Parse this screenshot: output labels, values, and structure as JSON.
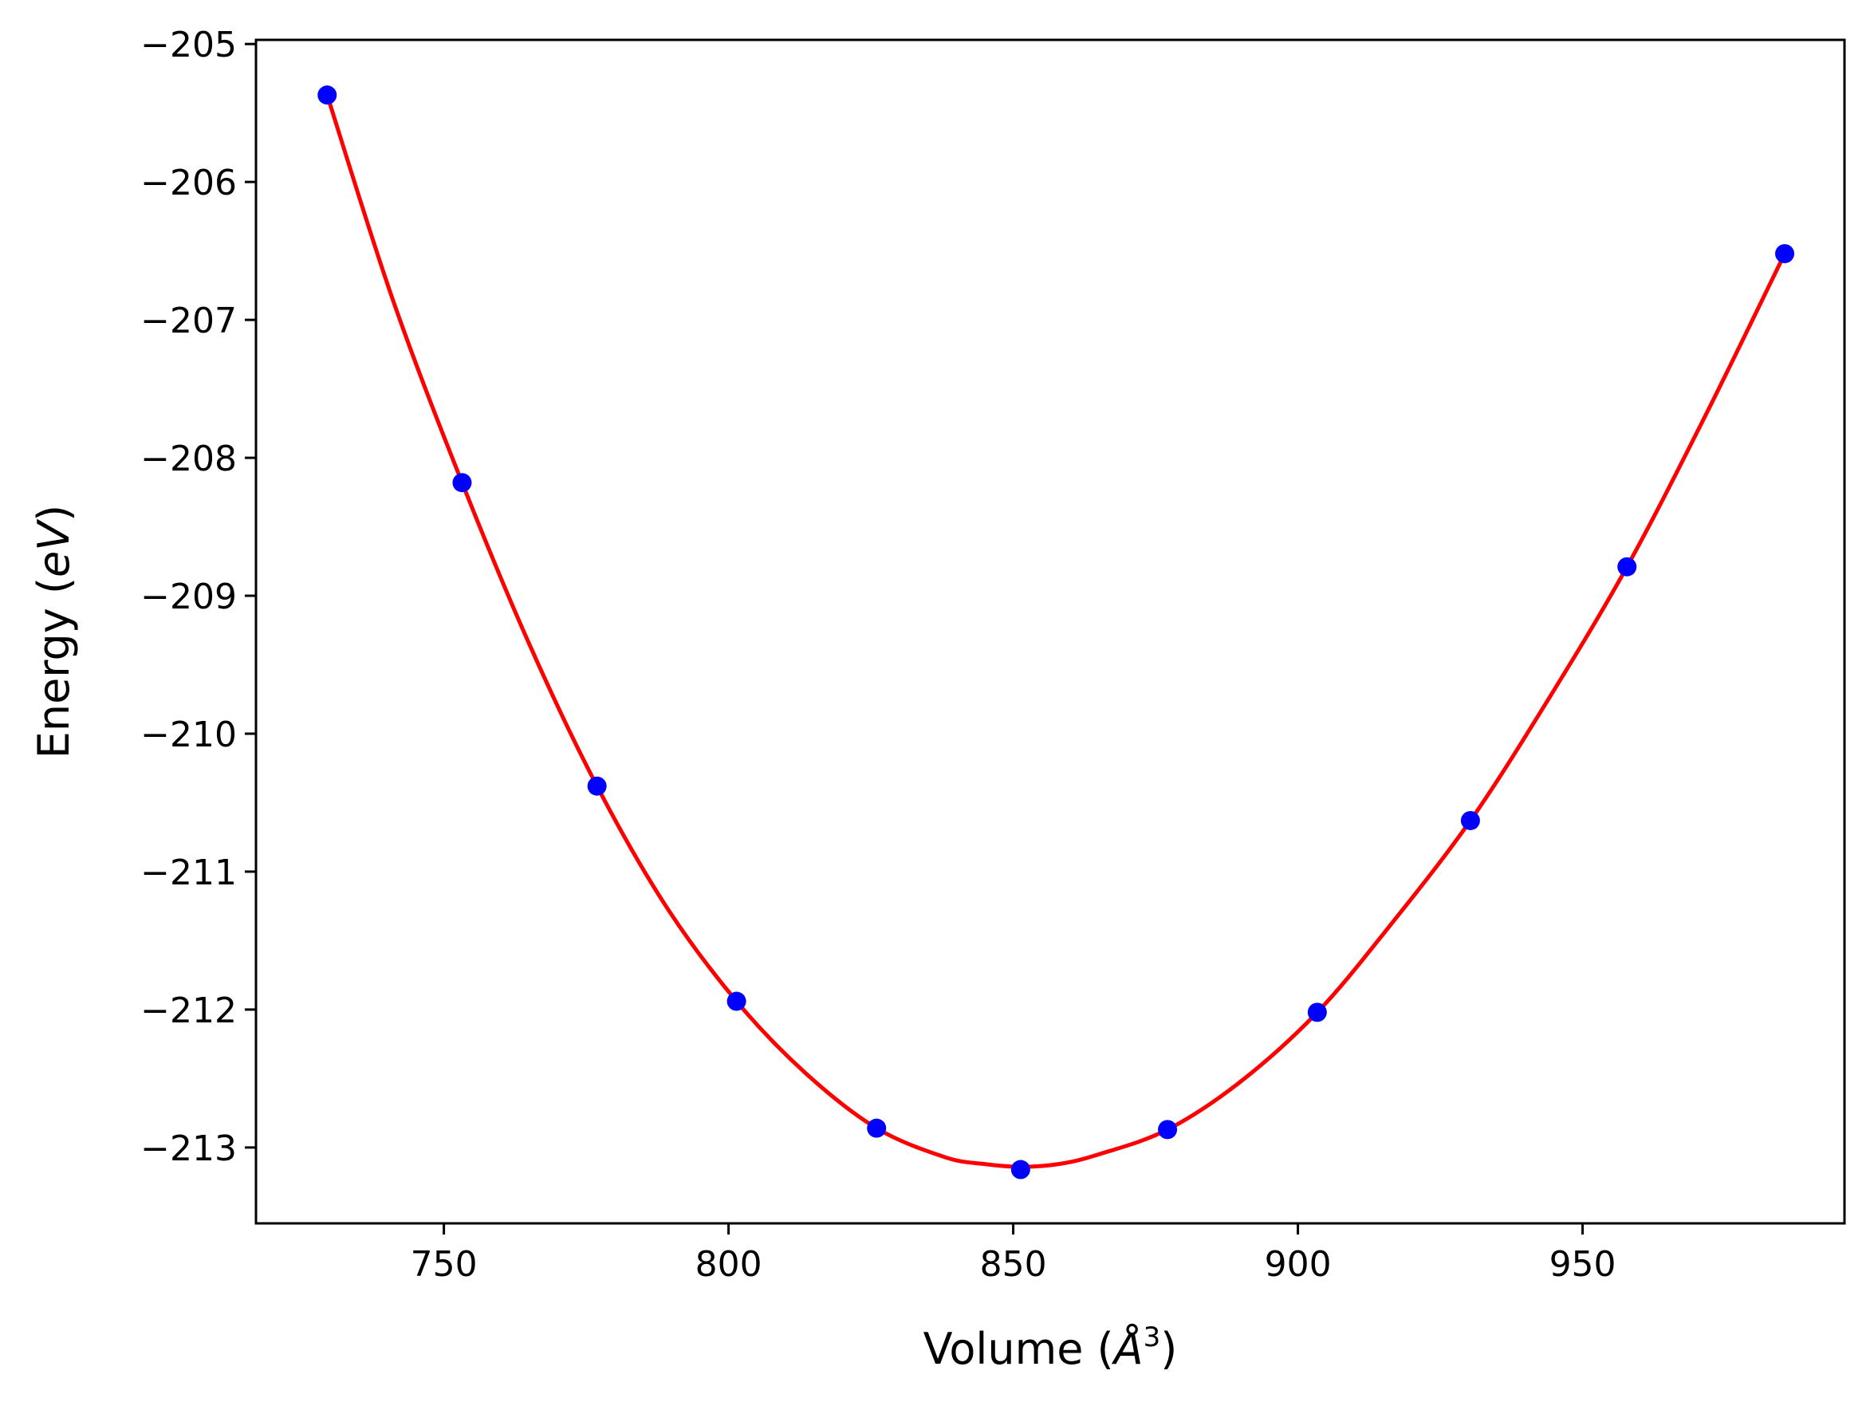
{
  "chart_data": {
    "type": "scatter",
    "title": "",
    "xlabel": {
      "prefix": "Volume (",
      "symbol": "Å",
      "sup": "3",
      "suffix": ")"
    },
    "ylabel": {
      "prefix": "Energy (",
      "unit": "eV",
      "suffix": ")"
    },
    "xlim": [
      717,
      996
    ],
    "ylim": [
      -213.55,
      -204.97
    ],
    "xticks": [
      750,
      800,
      850,
      900,
      950
    ],
    "xtick_labels": [
      "750",
      "800",
      "850",
      "900",
      "950"
    ],
    "yticks": [
      -205,
      -206,
      -207,
      -208,
      -209,
      -210,
      -211,
      -212,
      -213
    ],
    "ytick_labels": [
      "−205",
      "−206",
      "−207",
      "−208",
      "−209",
      "−210",
      "−211",
      "−212",
      "−213"
    ],
    "grid": false,
    "series": [
      {
        "kind": "points",
        "color": "#0000ff",
        "x": [
          729.5,
          753.2,
          776.9,
          801.4,
          826.0,
          851.3,
          877.1,
          903.4,
          930.3,
          957.8,
          985.5
        ],
        "y": [
          -205.37,
          -208.18,
          -210.38,
          -211.94,
          -212.86,
          -213.16,
          -212.87,
          -212.02,
          -210.63,
          -208.79,
          -206.52
        ]
      },
      {
        "kind": "fit-curve",
        "color": "#ff0000",
        "x": [
          729.5,
          741.0,
          753.2,
          765.0,
          776.9,
          789.0,
          801.4,
          813.5,
          826.0,
          838.0,
          845.0,
          851.3,
          858.0,
          865.0,
          877.1,
          890.0,
          903.4,
          916.0,
          930.3,
          944.0,
          957.8,
          971.5,
          985.5
        ],
        "y": [
          -205.37,
          -206.85,
          -208.18,
          -209.35,
          -210.38,
          -211.25,
          -211.94,
          -212.46,
          -212.86,
          -213.07,
          -213.12,
          -213.14,
          -213.12,
          -213.05,
          -212.87,
          -212.52,
          -212.02,
          -211.4,
          -210.63,
          -209.75,
          -208.79,
          -207.7,
          -206.52
        ]
      }
    ]
  }
}
